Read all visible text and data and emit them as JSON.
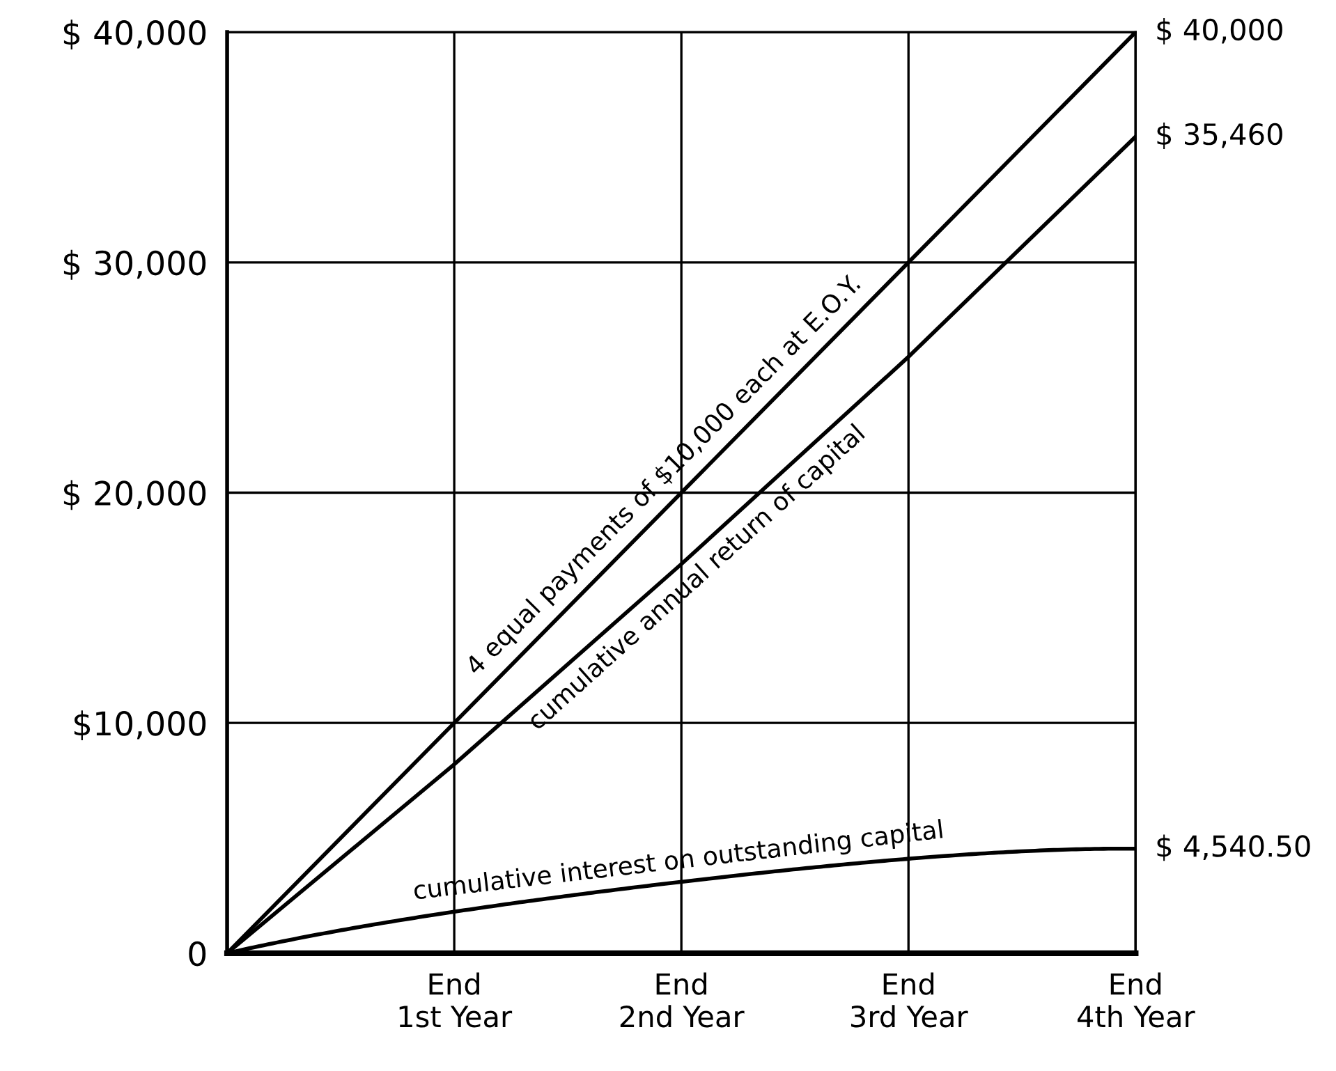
{
  "chart_data": {
    "type": "line",
    "categories": [
      null,
      "End\n1st Year",
      "End\n2nd Year",
      "End\n3rd Year",
      "End\n4th Year"
    ],
    "ylim": [
      0,
      40000
    ],
    "yticks": [
      {
        "value": 0,
        "label": "0"
      },
      {
        "value": 10000,
        "label": "$10,000"
      },
      {
        "value": 20000,
        "label": "$ 20,000"
      },
      {
        "value": 30000,
        "label": "$ 30,000"
      },
      {
        "value": 40000,
        "label": "$ 40,000"
      }
    ],
    "grid": true,
    "marker": "none",
    "line_style": "solid",
    "series": [
      {
        "name": "4 equal payments of $10,000 each at E.O.Y.",
        "color": "#000000",
        "values": [
          0,
          10000,
          20000,
          30000,
          40000
        ],
        "value_labels": [
          null,
          null,
          null,
          null,
          "$ 40,000"
        ]
      },
      {
        "name": "cumulative annual return of capital",
        "color": "#000000",
        "values": [
          0,
          8200,
          16900,
          25900,
          35460
        ],
        "value_labels": [
          null,
          null,
          null,
          null,
          "$ 35,460"
        ]
      },
      {
        "name": "cumulative interest on outstanding capital",
        "color": "#000000",
        "values": [
          0,
          1800,
          3100,
          4100,
          4540.5
        ],
        "value_labels": [
          null,
          null,
          null,
          null,
          "$ 4,540.50"
        ]
      }
    ]
  }
}
